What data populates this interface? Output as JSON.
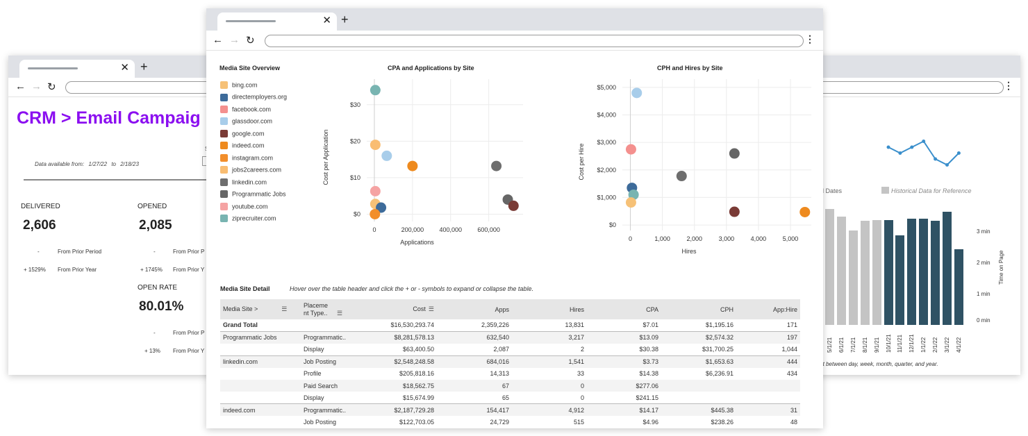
{
  "back_window": {
    "title": "CRM > Email Campaig",
    "data_available": {
      "prefix": "Data available from:",
      "from": "1/27/22",
      "to_word": "to",
      "to": "2/18/23"
    },
    "stray_label": "S",
    "metrics": [
      {
        "label": "DELIVERED",
        "value": "2,606",
        "prior_period_delta": "-",
        "prior_period_label": "From Prior Period",
        "prior_year_delta": "+ 1529%",
        "prior_year_label": "From Prior Year"
      },
      {
        "label": "OPENED",
        "value": "2,085",
        "prior_period_delta": "-",
        "prior_period_label": "From Prior P",
        "prior_year_delta": "+ 1745%",
        "prior_year_label": "From Prior Y"
      },
      {
        "label": "OPEN RATE",
        "value": "80.01%",
        "prior_period_delta": "-",
        "prior_period_label": "From Prior P",
        "prior_year_delta": "+ 13%",
        "prior_year_label": "From Prior Y"
      }
    ],
    "time_chart": {
      "legend_partial": "d Dates",
      "legend_historical": "Historical Data for Reference",
      "y2_axis_label": "Time on Page",
      "y2_ticks": [
        "3 min",
        "2 min",
        "1 min",
        "0 min"
      ],
      "footnote": "rt between day, week, month, quarter, and year.",
      "colors": {
        "historical": "#c4c4c4",
        "current": "#2f5264",
        "line": "#3a8fcc"
      }
    },
    "chart_data": {
      "type": "bar",
      "categories": [
        "5/1/21",
        "6/1/21",
        "7/1/21",
        "8/1/21",
        "9/1/21",
        "10/1/21",
        "11/1/21",
        "12/1/21",
        "1/1/22",
        "2/1/22",
        "3/1/22",
        "4/1/22"
      ],
      "series": [
        {
          "name": "Historical Data for Reference",
          "values": [
            0.98,
            0.92,
            0.8,
            0.88,
            0.89,
            0,
            0,
            0,
            0,
            0,
            0,
            0
          ]
        },
        {
          "values": [
            0,
            0,
            0,
            0,
            0,
            0.89,
            0.76,
            0.9,
            0.9,
            0.88,
            0.96,
            0.64
          ]
        }
      ],
      "line_series": {
        "values": [
          null,
          null,
          null,
          null,
          null,
          3.0,
          2.9,
          3.0,
          3.1,
          2.8,
          2.7,
          2.9
        ]
      }
    }
  },
  "front_window": {
    "overview_title": "Media Site Overview",
    "legend": [
      {
        "name": "bing.com",
        "color": "#f6c177"
      },
      {
        "name": "directemployers.org",
        "color": "#3d6b9a"
      },
      {
        "name": "facebook.com",
        "color": "#f4908e"
      },
      {
        "name": "glassdoor.com",
        "color": "#a8cdea"
      },
      {
        "name": "google.com",
        "color": "#7a3b36"
      },
      {
        "name": "indeed.com",
        "color": "#ee8a1e"
      },
      {
        "name": "instagram.com",
        "color": "#f28e2b"
      },
      {
        "name": "jobs2careers.com",
        "color": "#f9bd72"
      },
      {
        "name": "linkedin.com",
        "color": "#6e6e6e"
      },
      {
        "name": "Programmatic Jobs",
        "color": "#666666"
      },
      {
        "name": "youtube.com",
        "color": "#f5a3a3"
      },
      {
        "name": "ziprecruiter.com",
        "color": "#78b4b1"
      }
    ],
    "cpa_chart_title": "CPA and Applications by Site",
    "cph_chart_title": "CPH and Hires by Site",
    "chart_data": [
      {
        "type": "scatter",
        "title": "CPA and Applications by Site",
        "xlabel": "Applications",
        "ylabel": "Cost per Application",
        "x_ticks": [
          "0",
          "200,000",
          "400,000",
          "600,000"
        ],
        "y_ticks": [
          "$0",
          "$10",
          "$20",
          "$30"
        ],
        "xlim": [
          -40000,
          780000
        ],
        "ylim": [
          -2,
          37
        ],
        "points": [
          {
            "site": "ziprecruiter.com",
            "x": 5000,
            "y": 34,
            "color": "#78b4b1"
          },
          {
            "site": "jobs2careers.com",
            "x": 5000,
            "y": 19,
            "color": "#f9bd72"
          },
          {
            "site": "glassdoor.com",
            "x": 65000,
            "y": 16,
            "color": "#a8cdea"
          },
          {
            "site": "indeed.com",
            "x": 200000,
            "y": 13.2,
            "color": "#ee8a1e"
          },
          {
            "site": "linkedin.com",
            "x": 640000,
            "y": 13.2,
            "color": "#6e6e6e"
          },
          {
            "site": "youtube.com",
            "x": 5000,
            "y": 6.3,
            "color": "#f5a3a3"
          },
          {
            "site": "bing.com",
            "x": 5000,
            "y": 2.8,
            "color": "#f6c177"
          },
          {
            "site": "directemployers.org",
            "x": 35000,
            "y": 1.8,
            "color": "#3d6b9a"
          },
          {
            "site": "instagram.com",
            "x": 3000,
            "y": 0,
            "color": "#f28e2b"
          },
          {
            "site": "Programmatic Jobs",
            "x": 700000,
            "y": 4.0,
            "color": "#666666"
          },
          {
            "site": "google.com",
            "x": 730000,
            "y": 2.3,
            "color": "#7a3b36"
          }
        ]
      },
      {
        "type": "scatter",
        "title": "CPH and Hires by Site",
        "xlabel": "Hires",
        "ylabel": "Cost per Hire",
        "x_ticks": [
          "0",
          "1,000",
          "2,000",
          "3,000",
          "4,000",
          "5,000"
        ],
        "y_ticks": [
          "$0",
          "$1,000",
          "$2,000",
          "$3,000",
          "$4,000",
          "$5,000"
        ],
        "xlim": [
          -250,
          5650
        ],
        "ylim": [
          -200,
          5300
        ],
        "points": [
          {
            "site": "glassdoor.com",
            "x": 200,
            "y": 4800,
            "color": "#a8cdea"
          },
          {
            "site": "facebook.com",
            "x": 20,
            "y": 2750,
            "color": "#f4908e"
          },
          {
            "site": "Programmatic Jobs",
            "x": 3250,
            "y": 2600,
            "color": "#666666"
          },
          {
            "site": "linkedin.com",
            "x": 1600,
            "y": 1780,
            "color": "#6e6e6e"
          },
          {
            "site": "directemployers.org",
            "x": 50,
            "y": 1350,
            "color": "#3d6b9a"
          },
          {
            "site": "ziprecruiter.com",
            "x": 100,
            "y": 1100,
            "color": "#78b4b1"
          },
          {
            "site": "bing.com",
            "x": 20,
            "y": 820,
            "color": "#f6c177"
          },
          {
            "site": "google.com",
            "x": 3250,
            "y": 480,
            "color": "#7a3b36"
          },
          {
            "site": "indeed.com",
            "x": 5450,
            "y": 470,
            "color": "#ee8a1e"
          }
        ]
      }
    ],
    "detail": {
      "title": "Media Site Detail",
      "hint": "Hover over the table header and click the + or - symbols to expand or collapse the table.",
      "headers": {
        "site": "Media Site >",
        "placement": "Placeme nt Type..",
        "cost": "Cost",
        "apps": "Apps",
        "hires": "Hires",
        "cpa": "CPA",
        "cph": "CPH",
        "apphire": "App:Hire"
      },
      "rows": [
        {
          "site": "Grand Total",
          "placement": "",
          "cost": "$16,530,293.74",
          "apps": "2,359,226",
          "hires": "13,831",
          "cpa": "$7.01",
          "cph": "$1,195.16",
          "apphire": "171"
        },
        {
          "site": "Programmatic Jobs",
          "placement": "Programmatic..",
          "cost": "$8,281,578.13",
          "apps": "632,540",
          "hires": "3,217",
          "cpa": "$13.09",
          "cph": "$2,574.32",
          "apphire": "197"
        },
        {
          "site": "",
          "placement": "Display",
          "cost": "$63,400.50",
          "apps": "2,087",
          "hires": "2",
          "cpa": "$30.38",
          "cph": "$31,700.25",
          "apphire": "1,044"
        },
        {
          "site": "linkedin.com",
          "placement": "Job Posting",
          "cost": "$2,548,248.58",
          "apps": "684,016",
          "hires": "1,541",
          "cpa": "$3.73",
          "cph": "$1,653.63",
          "apphire": "444"
        },
        {
          "site": "",
          "placement": "Profile",
          "cost": "$205,818.16",
          "apps": "14,313",
          "hires": "33",
          "cpa": "$14.38",
          "cph": "$6,236.91",
          "apphire": "434"
        },
        {
          "site": "",
          "placement": "Paid Search",
          "cost": "$18,562.75",
          "apps": "67",
          "hires": "0",
          "cpa": "$277.06",
          "cph": "",
          "apphire": ""
        },
        {
          "site": "",
          "placement": "Display",
          "cost": "$15,674.99",
          "apps": "65",
          "hires": "0",
          "cpa": "$241.15",
          "cph": "",
          "apphire": ""
        },
        {
          "site": "indeed.com",
          "placement": "Programmatic..",
          "cost": "$2,187,729.28",
          "apps": "154,417",
          "hires": "4,912",
          "cpa": "$14.17",
          "cph": "$445.38",
          "apphire": "31"
        },
        {
          "site": "",
          "placement": "Job Posting",
          "cost": "$122,703.05",
          "apps": "24,729",
          "hires": "515",
          "cpa": "$4.96",
          "cph": "$238.26",
          "apphire": "48"
        }
      ]
    }
  }
}
